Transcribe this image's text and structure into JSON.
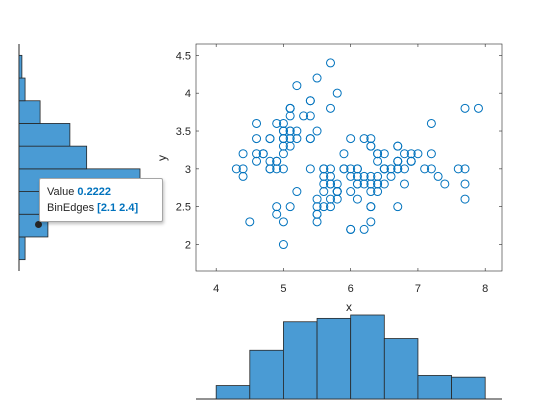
{
  "chart_data": [
    {
      "type": "scatter",
      "xlabel": "x",
      "ylabel": "y",
      "xlim": [
        3.7,
        8.25
      ],
      "ylim": [
        1.65,
        4.65
      ],
      "xticks": [
        4,
        5,
        6,
        7,
        8
      ],
      "yticks": [
        2,
        2.5,
        3,
        3.5,
        4,
        4.5
      ],
      "grid": false,
      "marker": "open-circle",
      "color": "#0072bd",
      "points": [
        [
          5.1,
          3.5
        ],
        [
          4.9,
          3.0
        ],
        [
          4.7,
          3.2
        ],
        [
          4.6,
          3.1
        ],
        [
          5.0,
          3.6
        ],
        [
          5.4,
          3.9
        ],
        [
          4.6,
          3.4
        ],
        [
          5.0,
          3.4
        ],
        [
          4.4,
          2.9
        ],
        [
          4.9,
          3.1
        ],
        [
          5.4,
          3.7
        ],
        [
          4.8,
          3.4
        ],
        [
          4.8,
          3.0
        ],
        [
          4.3,
          3.0
        ],
        [
          5.8,
          4.0
        ],
        [
          5.7,
          4.4
        ],
        [
          5.4,
          3.9
        ],
        [
          5.1,
          3.5
        ],
        [
          5.7,
          3.8
        ],
        [
          5.1,
          3.8
        ],
        [
          5.4,
          3.4
        ],
        [
          5.1,
          3.7
        ],
        [
          4.6,
          3.6
        ],
        [
          5.1,
          3.3
        ],
        [
          4.8,
          3.4
        ],
        [
          5.0,
          3.0
        ],
        [
          5.0,
          3.4
        ],
        [
          5.2,
          3.5
        ],
        [
          5.2,
          3.4
        ],
        [
          4.7,
          3.2
        ],
        [
          4.8,
          3.1
        ],
        [
          5.4,
          3.4
        ],
        [
          5.2,
          4.1
        ],
        [
          5.5,
          4.2
        ],
        [
          4.9,
          3.1
        ],
        [
          5.0,
          3.2
        ],
        [
          5.5,
          3.5
        ],
        [
          4.9,
          3.6
        ],
        [
          4.4,
          3.0
        ],
        [
          5.1,
          3.4
        ],
        [
          5.0,
          3.5
        ],
        [
          4.5,
          2.3
        ],
        [
          4.4,
          3.2
        ],
        [
          5.0,
          3.5
        ],
        [
          5.1,
          3.8
        ],
        [
          4.8,
          3.0
        ],
        [
          5.1,
          3.8
        ],
        [
          4.6,
          3.2
        ],
        [
          5.3,
          3.7
        ],
        [
          5.0,
          3.3
        ],
        [
          7.0,
          3.2
        ],
        [
          6.4,
          3.2
        ],
        [
          6.9,
          3.1
        ],
        [
          5.5,
          2.3
        ],
        [
          6.5,
          2.8
        ],
        [
          5.7,
          2.8
        ],
        [
          6.3,
          3.3
        ],
        [
          4.9,
          2.4
        ],
        [
          6.6,
          2.9
        ],
        [
          5.2,
          2.7
        ],
        [
          5.0,
          2.0
        ],
        [
          5.9,
          3.0
        ],
        [
          6.0,
          2.2
        ],
        [
          6.1,
          2.9
        ],
        [
          5.6,
          2.9
        ],
        [
          6.7,
          3.1
        ],
        [
          5.6,
          3.0
        ],
        [
          5.8,
          2.7
        ],
        [
          6.2,
          2.2
        ],
        [
          5.6,
          2.5
        ],
        [
          5.9,
          3.2
        ],
        [
          6.1,
          2.8
        ],
        [
          6.3,
          2.5
        ],
        [
          6.1,
          2.8
        ],
        [
          6.4,
          2.9
        ],
        [
          6.6,
          3.0
        ],
        [
          6.8,
          2.8
        ],
        [
          6.7,
          3.0
        ],
        [
          6.0,
          2.9
        ],
        [
          5.7,
          2.6
        ],
        [
          5.5,
          2.4
        ],
        [
          5.5,
          2.4
        ],
        [
          5.8,
          2.7
        ],
        [
          6.0,
          2.7
        ],
        [
          5.4,
          3.0
        ],
        [
          6.0,
          3.4
        ],
        [
          6.7,
          3.1
        ],
        [
          6.3,
          2.3
        ],
        [
          5.6,
          3.0
        ],
        [
          5.5,
          2.5
        ],
        [
          5.5,
          2.6
        ],
        [
          6.1,
          3.0
        ],
        [
          5.8,
          2.6
        ],
        [
          5.0,
          2.3
        ],
        [
          5.6,
          2.7
        ],
        [
          5.7,
          3.0
        ],
        [
          5.7,
          2.9
        ],
        [
          6.2,
          2.9
        ],
        [
          5.1,
          2.5
        ],
        [
          5.7,
          2.8
        ],
        [
          6.3,
          3.3
        ],
        [
          5.8,
          2.7
        ],
        [
          7.1,
          3.0
        ],
        [
          6.3,
          2.9
        ],
        [
          6.5,
          3.0
        ],
        [
          7.6,
          3.0
        ],
        [
          4.9,
          2.5
        ],
        [
          7.3,
          2.9
        ],
        [
          6.7,
          2.5
        ],
        [
          7.2,
          3.6
        ],
        [
          6.5,
          3.2
        ],
        [
          6.4,
          2.7
        ],
        [
          6.8,
          3.0
        ],
        [
          5.7,
          2.5
        ],
        [
          5.8,
          2.8
        ],
        [
          6.4,
          3.2
        ],
        [
          6.5,
          3.0
        ],
        [
          7.7,
          3.8
        ],
        [
          7.7,
          2.6
        ],
        [
          6.0,
          2.2
        ],
        [
          6.9,
          3.2
        ],
        [
          5.6,
          2.8
        ],
        [
          7.7,
          2.8
        ],
        [
          6.3,
          2.7
        ],
        [
          6.7,
          3.3
        ],
        [
          7.2,
          3.2
        ],
        [
          6.2,
          2.8
        ],
        [
          6.1,
          3.0
        ],
        [
          6.4,
          2.8
        ],
        [
          7.2,
          3.0
        ],
        [
          7.4,
          2.8
        ],
        [
          7.9,
          3.8
        ],
        [
          6.4,
          2.8
        ],
        [
          6.3,
          2.8
        ],
        [
          6.1,
          2.6
        ],
        [
          7.7,
          3.0
        ],
        [
          6.3,
          3.4
        ],
        [
          6.4,
          3.1
        ],
        [
          6.0,
          3.0
        ],
        [
          6.9,
          3.1
        ],
        [
          6.7,
          3.1
        ],
        [
          6.9,
          3.1
        ],
        [
          5.8,
          2.7
        ],
        [
          6.8,
          3.2
        ],
        [
          6.7,
          3.3
        ],
        [
          6.7,
          3.0
        ],
        [
          6.3,
          2.5
        ],
        [
          6.5,
          3.0
        ],
        [
          6.2,
          3.4
        ],
        [
          5.9,
          3.0
        ]
      ]
    },
    {
      "type": "bar",
      "orientation": "vertical",
      "bin_edges": [
        4.0,
        4.5,
        5.0,
        5.5,
        6.0,
        6.5,
        7.0,
        7.5,
        8.0
      ],
      "values": [
        0.0267,
        0.0967,
        0.1533,
        0.16,
        0.1667,
        0.12,
        0.0467,
        0.0433
      ],
      "color": "#4a9bd4",
      "axis_visible": false
    },
    {
      "type": "bar",
      "orientation": "horizontal",
      "bin_edges": [
        1.8,
        2.1,
        2.4,
        2.7,
        3.0,
        3.3,
        3.6,
        3.9,
        4.2,
        4.5
      ],
      "values": [
        0.0467,
        0.2222,
        0.38,
        0.93,
        0.52,
        0.3911,
        0.1622,
        0.0467,
        0.0222
      ],
      "color": "#4a9bd4",
      "axis_visible": false
    }
  ],
  "datatip": {
    "value_label": "Value",
    "value": "0.2222",
    "edges_label": "BinEdges",
    "edges": "[2.1 2.4]"
  }
}
